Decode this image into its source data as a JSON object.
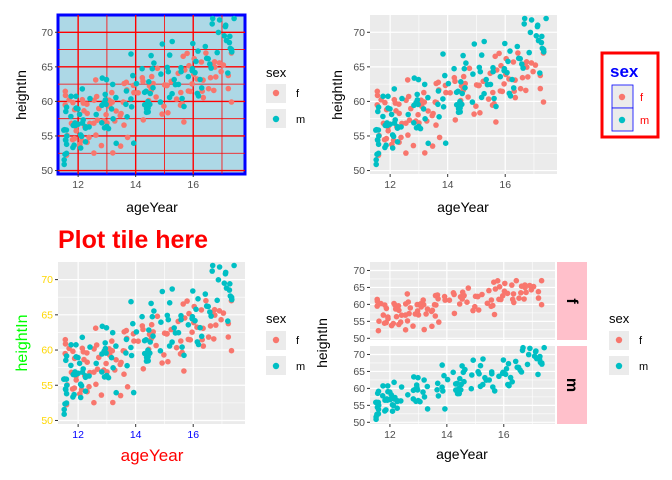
{
  "colors": {
    "f": "#F8766D",
    "m": "#00BFC4",
    "panel_default": "#EBEBEB",
    "panel_p1": "#ADD8E6",
    "grid_p1": "#FF0000",
    "border_p1": "#0000FF",
    "strip_fill": "#FFC0CB",
    "legend_border": "#FF0000",
    "legend_title_blue": "#0000FF",
    "title_red": "#FF0000",
    "y_title_green": "#00FF00",
    "y_ticks_gold": "#FFD700",
    "x_ticks_blue": "#0000FF"
  },
  "plot_title": "Plot tile here",
  "legend": {
    "title": "sex",
    "entries": [
      "f",
      "m"
    ]
  },
  "chart_data": [
    {
      "type": "scatter",
      "panel": "top-left",
      "xlabel": "ageYear",
      "ylabel": "heightIn",
      "xlim": [
        11.3,
        17.8
      ],
      "ylim": [
        49.5,
        72.5
      ],
      "xticks": [
        "12",
        "14",
        "16"
      ],
      "yticks": [
        "50",
        "55",
        "60",
        "65",
        "70"
      ],
      "legend": "right",
      "series": [
        {
          "name": "f"
        },
        {
          "name": "m"
        }
      ]
    },
    {
      "type": "scatter",
      "panel": "top-right",
      "xlabel": "ageYear",
      "ylabel": "heightIn",
      "xlim": [
        11.3,
        17.8
      ],
      "ylim": [
        49.5,
        72.5
      ],
      "xticks": [
        "12",
        "14",
        "16"
      ],
      "yticks": [
        "50",
        "55",
        "60",
        "65",
        "70"
      ],
      "legend": "right",
      "series": [
        {
          "name": "f"
        },
        {
          "name": "m"
        }
      ]
    },
    {
      "type": "scatter",
      "panel": "bottom-left",
      "title": "Plot tile here",
      "xlabel": "ageYear",
      "ylabel": "heightIn",
      "xlim": [
        11.3,
        17.8
      ],
      "ylim": [
        49.5,
        72.5
      ],
      "xticks": [
        "12",
        "14",
        "16"
      ],
      "yticks": [
        "50",
        "55",
        "60",
        "65",
        "70"
      ],
      "legend": "right",
      "series": [
        {
          "name": "f"
        },
        {
          "name": "m"
        }
      ]
    },
    {
      "type": "scatter",
      "panel": "bottom-right",
      "xlabel": "ageYear",
      "ylabel": "heightIn",
      "xlim": [
        11.3,
        17.8
      ],
      "ylim": [
        49.5,
        72.5
      ],
      "xticks": [
        "12",
        "14",
        "16"
      ],
      "yticks": [
        "50",
        "55",
        "60",
        "65",
        "70"
      ],
      "facets": [
        "f",
        "m"
      ],
      "legend": "right",
      "series": [
        {
          "name": "f"
        },
        {
          "name": "m"
        }
      ]
    }
  ]
}
